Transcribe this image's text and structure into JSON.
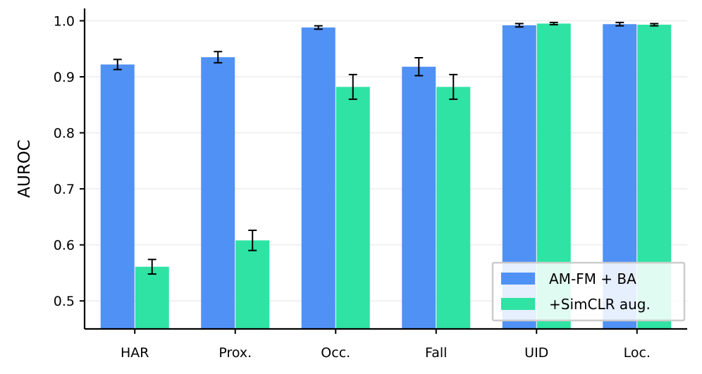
{
  "chart_data": {
    "type": "bar",
    "title": "",
    "xlabel": "",
    "ylabel": "AUROC",
    "categories": [
      "HAR",
      "Prox.",
      "Occ.",
      "Fall",
      "UID",
      "Loc."
    ],
    "ylim": [
      0.45,
      1.022
    ],
    "yticks": [
      0.5,
      0.6,
      0.7,
      0.8,
      0.9,
      1.0
    ],
    "yticklabels": [
      "0.5",
      "0.6",
      "0.7",
      "0.8",
      "0.9",
      "1.0"
    ],
    "grid": "horizontal",
    "legend_position": "bottom-right",
    "series": [
      {
        "name": "AM-FM + BA",
        "color": "#5091f5",
        "values": [
          0.922,
          0.935,
          0.988,
          0.918,
          0.992,
          0.994
        ],
        "errors": [
          0.009,
          0.01,
          0.003,
          0.016,
          0.003,
          0.003
        ]
      },
      {
        "name": "+SimCLR aug.",
        "color": "#2ee3a3",
        "values": [
          0.561,
          0.608,
          0.882,
          0.882,
          0.995,
          0.993
        ],
        "errors": [
          0.013,
          0.018,
          0.022,
          0.022,
          0.002,
          0.002
        ]
      }
    ]
  }
}
